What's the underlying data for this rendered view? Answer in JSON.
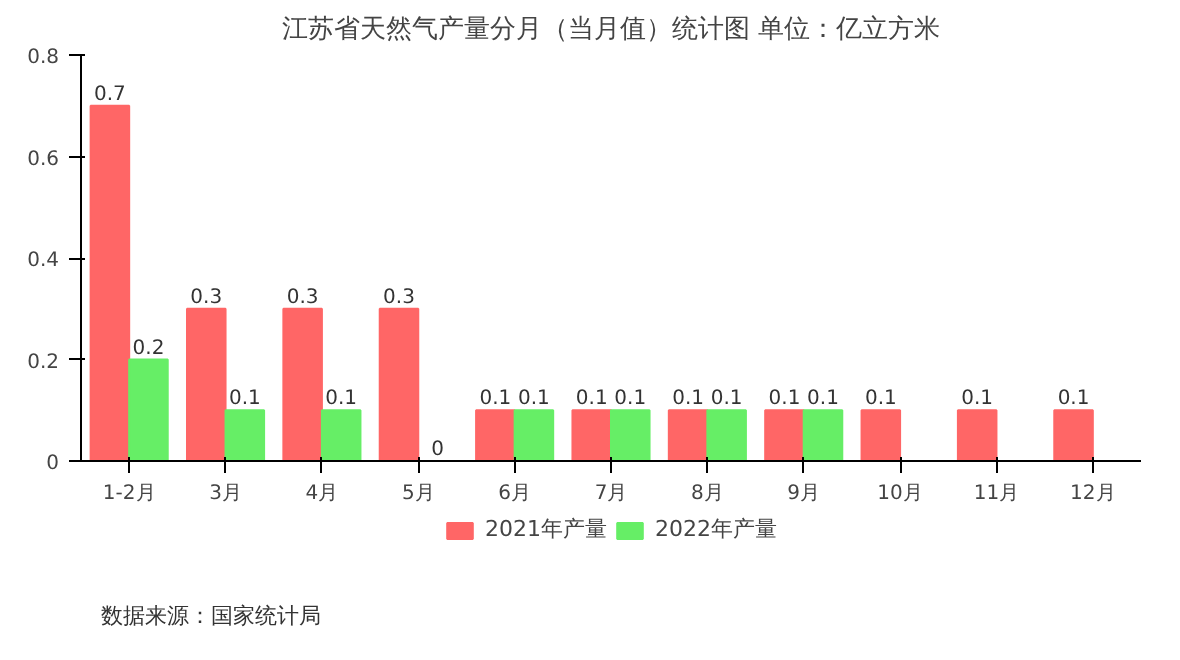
{
  "chart_data": {
    "type": "bar",
    "title": "江苏省天然气产量分月（当月值）统计图 单位：亿立方米",
    "categories": [
      "1-2月",
      "3月",
      "4月",
      "5月",
      "6月",
      "7月",
      "8月",
      "9月",
      "10月",
      "11月",
      "12月"
    ],
    "series": [
      {
        "name": "2021年产量",
        "color": "#ff6666",
        "values": [
          0.7,
          0.3,
          0.3,
          0.3,
          0.1,
          0.1,
          0.1,
          0.1,
          0.1,
          0.1,
          0.1
        ]
      },
      {
        "name": "2022年产量",
        "color": "#66ee66",
        "values": [
          0.2,
          0.1,
          0.1,
          0,
          0.1,
          0.1,
          0.1,
          0.1,
          null,
          null,
          null
        ]
      }
    ],
    "ylim": [
      0,
      0.8
    ],
    "yticks": [
      0,
      0.2,
      0.4,
      0.6,
      0.8
    ],
    "grid": false,
    "legend": "bottom",
    "data_labels": true,
    "annotations": [
      "数据来源：国家统计局"
    ]
  }
}
